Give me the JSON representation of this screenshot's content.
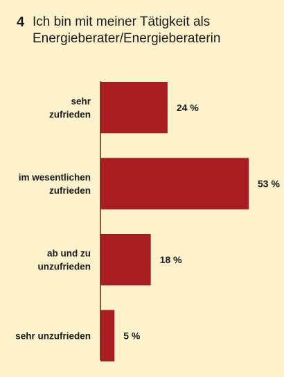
{
  "chart_data": {
    "type": "bar",
    "orientation": "horizontal",
    "number": "4",
    "title": "Ich bin mit meiner Tätigkeit als Energieberater/Energieberaterin",
    "categories": [
      [
        "sehr",
        "zufrieden"
      ],
      [
        "im wesentlichen",
        "zufrieden"
      ],
      [
        "ab und zu",
        "unzufrieden"
      ],
      [
        "sehr unzufrieden"
      ]
    ],
    "values": [
      24,
      53,
      18,
      5
    ],
    "value_labels": [
      "24 %",
      "53 %",
      "18 %",
      "5 %"
    ],
    "unit": "%",
    "xlim": [
      0,
      53
    ],
    "grid": false,
    "legend": "none"
  },
  "colors": {
    "background": "#fdf2cc",
    "bar": "#a81d22",
    "axis": "#5a2a10",
    "text": "#1a1a1a"
  }
}
